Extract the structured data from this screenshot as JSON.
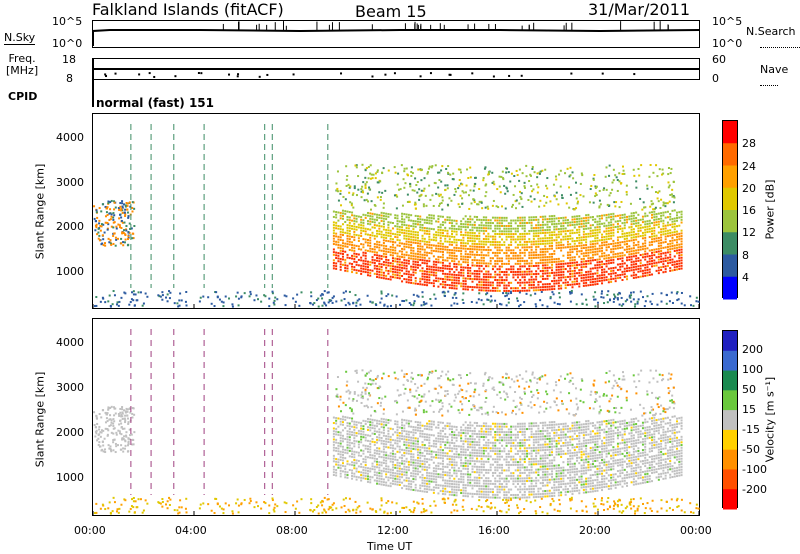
{
  "header": {
    "station": "Falkland Islands (fitACF)",
    "beam": "Beam 15",
    "date": "31/Mar/2011"
  },
  "panels": {
    "nsky": {
      "label": "N.Sky",
      "tick_top": "10^5",
      "tick_bottom": "10^0"
    },
    "nsearch": {
      "label": "N.Search",
      "tick_top": "10^5",
      "tick_bottom": "10^0"
    },
    "freq": {
      "label_top": "Freq.",
      "label_bottom": "[MHz]",
      "tick_top": "18",
      "tick_bottom": "8"
    },
    "nave": {
      "label": "Nave",
      "tick_top": "60",
      "tick_bottom": "0"
    },
    "cpid": {
      "label": "CPID",
      "value": "normal (fast) 151"
    }
  },
  "chart_data": [
    {
      "type": "heatmap",
      "name": "power",
      "xlabel": "",
      "ylabel": "Slant Range [km]",
      "y_ticks": [
        "1000",
        "2000",
        "3000",
        "4000"
      ],
      "ylim": [
        200,
        4500
      ],
      "colorbar": {
        "label": "Power [dB]",
        "ticks": [
          "28",
          "24",
          "20",
          "16",
          "12",
          "8",
          "4"
        ],
        "colors": [
          "#ff0000",
          "#ff6a00",
          "#ffa000",
          "#e0c800",
          "#9cc43c",
          "#3c8c64",
          "#2c5aa0",
          "#0000ff"
        ]
      }
    },
    {
      "type": "heatmap",
      "name": "velocity",
      "xlabel": "Time UT",
      "ylabel": "Slant Range [km]",
      "y_ticks": [
        "1000",
        "2000",
        "3000",
        "4000"
      ],
      "ylim": [
        200,
        4500
      ],
      "x_ticks": [
        "00:00",
        "04:00",
        "08:00",
        "12:00",
        "16:00",
        "20:00",
        "00:00"
      ],
      "colorbar": {
        "label": "Velocity [m s⁻¹]",
        "ticks": [
          "200",
          "100",
          "50",
          "15",
          "-15",
          "-50",
          "-100",
          "-200"
        ],
        "colors": [
          "#2020c0",
          "#3a6ad0",
          "#1a8a50",
          "#6ac83c",
          "#c0c0c0",
          "#ffd000",
          "#ff9000",
          "#ff5000",
          "#ff0000"
        ]
      }
    }
  ]
}
